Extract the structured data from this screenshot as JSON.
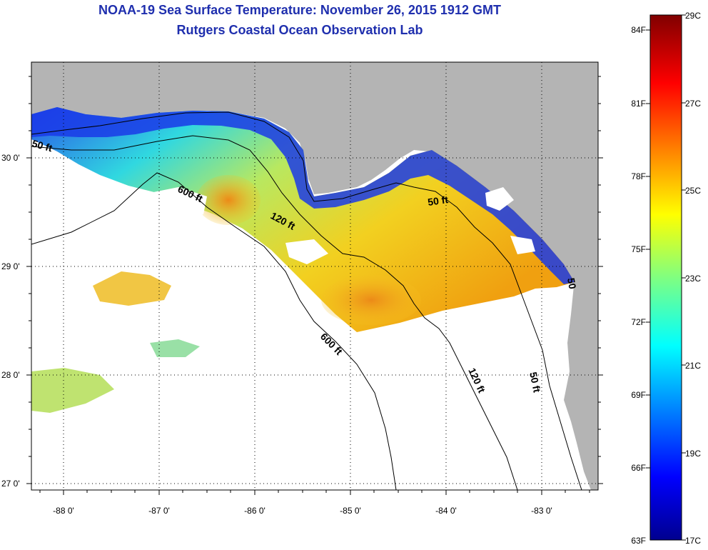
{
  "header": {
    "title": "NOAA-19 Sea Surface Temperature:  November 26, 2015 1912 GMT",
    "subtitle": "Rutgers Coastal Ocean Observation Lab"
  },
  "axes": {
    "lon_ticks": [
      "-88 0'",
      "-87 0'",
      "-86 0'",
      "-85 0'",
      "-84 0'",
      "-83 0'"
    ],
    "lat_ticks": [
      "30 0'",
      "29 0'",
      "28 0'",
      "27 0'"
    ]
  },
  "contours": {
    "labels": [
      "50 ft",
      "600 ft",
      "120 ft",
      "50 ft",
      "600 ft",
      "120 ft",
      "50 ft",
      "50"
    ]
  },
  "colorbar": {
    "fahrenheit": [
      "84F",
      "81F",
      "78F",
      "75F",
      "72F",
      "69F",
      "66F",
      "63F"
    ],
    "celsius": [
      "29C",
      "27C",
      "25C",
      "23C",
      "21C",
      "19C",
      "17C"
    ]
  },
  "colors": {
    "land": "#b4b4b4",
    "cloud": "#ffffff",
    "title": "#1f2fae"
  }
}
